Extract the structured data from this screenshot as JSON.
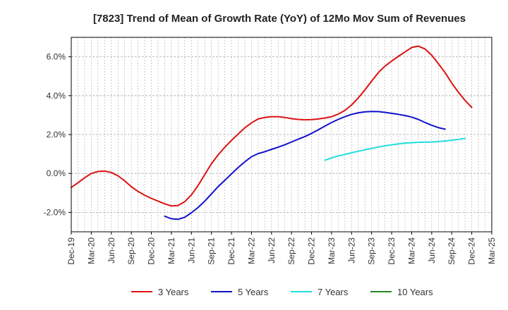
{
  "chart_data": {
    "type": "line",
    "title": "[7823]  Trend of Mean of Growth Rate (YoY) of 12Mo Mov Sum of Revenues",
    "xlabel": "",
    "ylabel": "",
    "x_ticks": [
      "Dec-19",
      "Mar-20",
      "Jun-20",
      "Sep-20",
      "Dec-20",
      "Mar-21",
      "Jun-21",
      "Sep-21",
      "Dec-21",
      "Mar-22",
      "Jun-22",
      "Sep-22",
      "Dec-22",
      "Mar-23",
      "Jun-23",
      "Sep-23",
      "Dec-23",
      "Mar-24",
      "Jun-24",
      "Sep-24",
      "Dec-24",
      "Mar-25"
    ],
    "x_range": [
      0,
      21
    ],
    "ylim": [
      -3.0,
      7.0
    ],
    "y_ticks": [
      -2.0,
      0.0,
      2.0,
      4.0,
      6.0
    ],
    "y_tick_labels": [
      "-2.0%",
      "0.0%",
      "2.0%",
      "4.0%",
      "6.0%"
    ],
    "grid": true,
    "legend_position": "bottom",
    "series": [
      {
        "name": "3 Years",
        "color": "#dd1111",
        "points": [
          [
            0,
            -0.72
          ],
          [
            0.33,
            -0.48
          ],
          [
            0.67,
            -0.22
          ],
          [
            1,
            0.0
          ],
          [
            1.33,
            0.1
          ],
          [
            1.67,
            0.12
          ],
          [
            2,
            0.05
          ],
          [
            2.33,
            -0.12
          ],
          [
            2.67,
            -0.38
          ],
          [
            3,
            -0.68
          ],
          [
            3.33,
            -0.92
          ],
          [
            3.67,
            -1.12
          ],
          [
            4,
            -1.28
          ],
          [
            4.33,
            -1.42
          ],
          [
            4.67,
            -1.56
          ],
          [
            5,
            -1.67
          ],
          [
            5.33,
            -1.65
          ],
          [
            5.67,
            -1.45
          ],
          [
            6,
            -1.1
          ],
          [
            6.33,
            -0.62
          ],
          [
            6.67,
            -0.05
          ],
          [
            7,
            0.5
          ],
          [
            7.33,
            0.95
          ],
          [
            7.67,
            1.35
          ],
          [
            8,
            1.7
          ],
          [
            8.33,
            2.02
          ],
          [
            8.67,
            2.35
          ],
          [
            9,
            2.6
          ],
          [
            9.33,
            2.8
          ],
          [
            9.67,
            2.88
          ],
          [
            10,
            2.92
          ],
          [
            10.33,
            2.92
          ],
          [
            10.67,
            2.88
          ],
          [
            11,
            2.82
          ],
          [
            11.33,
            2.78
          ],
          [
            11.67,
            2.76
          ],
          [
            12,
            2.77
          ],
          [
            12.33,
            2.8
          ],
          [
            12.67,
            2.85
          ],
          [
            13,
            2.92
          ],
          [
            13.33,
            3.05
          ],
          [
            13.67,
            3.25
          ],
          [
            14,
            3.52
          ],
          [
            14.33,
            3.88
          ],
          [
            14.67,
            4.3
          ],
          [
            15,
            4.75
          ],
          [
            15.33,
            5.18
          ],
          [
            15.67,
            5.52
          ],
          [
            16,
            5.78
          ],
          [
            16.33,
            6.02
          ],
          [
            16.67,
            6.25
          ],
          [
            17,
            6.48
          ],
          [
            17.33,
            6.55
          ],
          [
            17.67,
            6.4
          ],
          [
            18,
            6.08
          ],
          [
            18.33,
            5.65
          ],
          [
            18.67,
            5.18
          ],
          [
            19,
            4.65
          ],
          [
            19.33,
            4.18
          ],
          [
            19.67,
            3.75
          ],
          [
            20,
            3.4
          ]
        ]
      },
      {
        "name": "5 Years",
        "color": "#1111cc",
        "points": [
          [
            4.67,
            -2.2
          ],
          [
            5,
            -2.33
          ],
          [
            5.33,
            -2.36
          ],
          [
            5.67,
            -2.25
          ],
          [
            6,
            -2.02
          ],
          [
            6.33,
            -1.75
          ],
          [
            6.67,
            -1.42
          ],
          [
            7,
            -1.05
          ],
          [
            7.33,
            -0.68
          ],
          [
            7.67,
            -0.35
          ],
          [
            8,
            -0.02
          ],
          [
            8.33,
            0.3
          ],
          [
            8.67,
            0.6
          ],
          [
            9,
            0.86
          ],
          [
            9.33,
            1.02
          ],
          [
            9.67,
            1.12
          ],
          [
            10,
            1.24
          ],
          [
            10.33,
            1.35
          ],
          [
            10.67,
            1.48
          ],
          [
            11,
            1.62
          ],
          [
            11.33,
            1.76
          ],
          [
            11.67,
            1.9
          ],
          [
            12,
            2.06
          ],
          [
            12.33,
            2.24
          ],
          [
            12.67,
            2.44
          ],
          [
            13,
            2.62
          ],
          [
            13.33,
            2.78
          ],
          [
            13.67,
            2.92
          ],
          [
            14,
            3.04
          ],
          [
            14.33,
            3.12
          ],
          [
            14.67,
            3.17
          ],
          [
            15,
            3.19
          ],
          [
            15.33,
            3.18
          ],
          [
            15.67,
            3.14
          ],
          [
            16,
            3.09
          ],
          [
            16.33,
            3.04
          ],
          [
            16.67,
            2.98
          ],
          [
            17,
            2.9
          ],
          [
            17.33,
            2.78
          ],
          [
            17.67,
            2.62
          ],
          [
            18,
            2.48
          ],
          [
            18.33,
            2.36
          ],
          [
            18.67,
            2.28
          ]
        ]
      },
      {
        "name": "7 Years",
        "color": "#22dddd",
        "points": [
          [
            12.67,
            0.68
          ],
          [
            13,
            0.8
          ],
          [
            13.33,
            0.9
          ],
          [
            13.67,
            0.98
          ],
          [
            14,
            1.06
          ],
          [
            14.33,
            1.14
          ],
          [
            14.67,
            1.22
          ],
          [
            15,
            1.29
          ],
          [
            15.33,
            1.36
          ],
          [
            15.67,
            1.42
          ],
          [
            16,
            1.47
          ],
          [
            16.33,
            1.52
          ],
          [
            16.67,
            1.56
          ],
          [
            17,
            1.58
          ],
          [
            17.33,
            1.6
          ],
          [
            17.67,
            1.61
          ],
          [
            18,
            1.62
          ],
          [
            18.33,
            1.64
          ],
          [
            18.67,
            1.67
          ],
          [
            19,
            1.71
          ],
          [
            19.33,
            1.75
          ],
          [
            19.67,
            1.8
          ]
        ]
      },
      {
        "name": "10 Years",
        "color": "#228822",
        "points": []
      }
    ]
  }
}
